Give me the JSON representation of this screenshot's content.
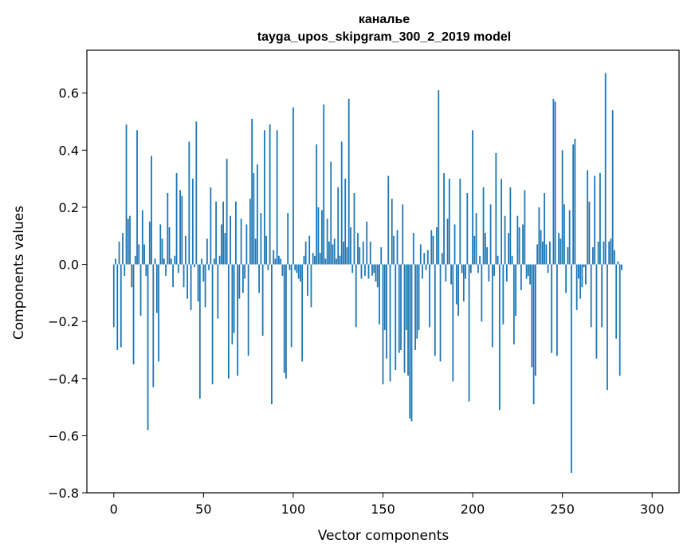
{
  "chart_data": {
    "type": "bar",
    "title_lines": [
      "каналье",
      "tayga_upos_skipgram_300_2_2019 model"
    ],
    "xlabel": "Vector components",
    "ylabel": "Components values",
    "xlim": [
      -15,
      315
    ],
    "ylim": [
      -0.8,
      0.75
    ],
    "xticks": [
      0,
      50,
      100,
      150,
      200,
      250,
      300
    ],
    "yticks": [
      -0.8,
      -0.6,
      -0.4,
      -0.2,
      0.0,
      0.2,
      0.4,
      0.6
    ],
    "ytick_labels": [
      "−0.8",
      "−0.6",
      "−0.4",
      "−0.2",
      "0.0",
      "0.2",
      "0.4",
      "0.6"
    ],
    "bar_color": "#1f77b4",
    "values": [
      -0.22,
      0.02,
      -0.3,
      0.08,
      -0.29,
      0.11,
      -0.04,
      0.49,
      0.16,
      0.17,
      -0.08,
      -0.35,
      0.03,
      0.47,
      0.07,
      -0.18,
      0.19,
      0.07,
      -0.04,
      -0.58,
      0.15,
      0.38,
      -0.43,
      0.02,
      -0.17,
      -0.34,
      0.14,
      0.09,
      0.02,
      -0.04,
      0.25,
      0.13,
      0.02,
      -0.08,
      0.03,
      0.32,
      -0.03,
      0.26,
      0.24,
      -0.08,
      0.1,
      -0.12,
      0.43,
      -0.16,
      0.3,
      -0.01,
      0.5,
      -0.13,
      -0.47,
      0.02,
      -0.06,
      -0.15,
      0.09,
      -0.02,
      0.27,
      -0.42,
      0.02,
      0.22,
      -0.19,
      0.03,
      0.14,
      0.22,
      0.11,
      0.37,
      -0.4,
      0.17,
      -0.28,
      -0.24,
      0.22,
      -0.39,
      -0.12,
      0.16,
      -0.1,
      -0.05,
      0.14,
      -0.32,
      0.23,
      0.51,
      0.32,
      0.09,
      0.35,
      -0.1,
      0.18,
      -0.25,
      0.47,
      0.1,
      -0.02,
      0.49,
      -0.49,
      0.05,
      0.02,
      0.47,
      0.03,
      0.02,
      -0.04,
      -0.38,
      -0.4,
      0.18,
      -0.02,
      -0.29,
      0.55,
      -0.02,
      -0.03,
      -0.05,
      -0.06,
      -0.34,
      0.03,
      0.08,
      -0.11,
      0.1,
      -0.15,
      0.04,
      0.03,
      0.42,
      0.2,
      0.04,
      0.19,
      0.56,
      0.02,
      0.16,
      0.08,
      0.36,
      0.07,
      0.09,
      0.02,
      0.27,
      0.03,
      0.43,
      0.08,
      0.3,
      0.06,
      0.58,
      0.13,
      -0.03,
      0.25,
      -0.22,
      0.11,
      0.06,
      -0.05,
      0.08,
      -0.04,
      0.15,
      -0.05,
      0.08,
      -0.04,
      -0.03,
      -0.06,
      -0.08,
      -0.21,
      0.06,
      -0.42,
      -0.23,
      -0.33,
      0.31,
      -0.41,
      0.23,
      0.1,
      -0.37,
      0.12,
      -0.31,
      -0.3,
      0.21,
      -0.38,
      -0.23,
      -0.39,
      -0.54,
      -0.55,
      0.11,
      -0.3,
      -0.26,
      -0.23,
      0.07,
      -0.05,
      0.04,
      -0.02,
      0.05,
      -0.22,
      0.12,
      0.1,
      -0.32,
      0.13,
      0.61,
      -0.34,
      0.04,
      0.32,
      -0.06,
      0.16,
      0.3,
      -0.07,
      -0.41,
      0.14,
      -0.14,
      -0.18,
      0.3,
      -0.03,
      -0.13,
      -0.05,
      0.25,
      -0.48,
      -0.03,
      0.47,
      0.1,
      0.18,
      -0.03,
      0.03,
      -0.2,
      0.27,
      0.11,
      0.06,
      -0.06,
      0.21,
      -0.29,
      -0.04,
      0.39,
      0.03,
      -0.51,
      0.3,
      -0.21,
      0.17,
      -0.06,
      0.11,
      0.27,
      0.03,
      -0.28,
      -0.18,
      0.17,
      0.13,
      -0.09,
      0.14,
      0.26,
      -0.05,
      -0.04,
      -0.07,
      -0.36,
      -0.49,
      -0.39,
      0.07,
      0.2,
      0.12,
      0.08,
      0.25,
      0.07,
      -0.03,
      0.08,
      -0.31,
      0.58,
      0.57,
      -0.32,
      0.11,
      0.09,
      0.4,
      0.21,
      -0.1,
      0.06,
      0.19,
      -0.73,
      0.42,
      0.44,
      -0.16,
      -0.05,
      -0.12,
      -0.08,
      -0.01,
      -0.07,
      0.33,
      0.22,
      -0.22,
      0.06,
      0.31,
      -0.33,
      0.08,
      0.32,
      -0.22,
      0.08,
      0.67,
      -0.44,
      0.08,
      0.09,
      0.54,
      0.05,
      -0.26,
      0.01,
      -0.39,
      -0.02
    ]
  }
}
